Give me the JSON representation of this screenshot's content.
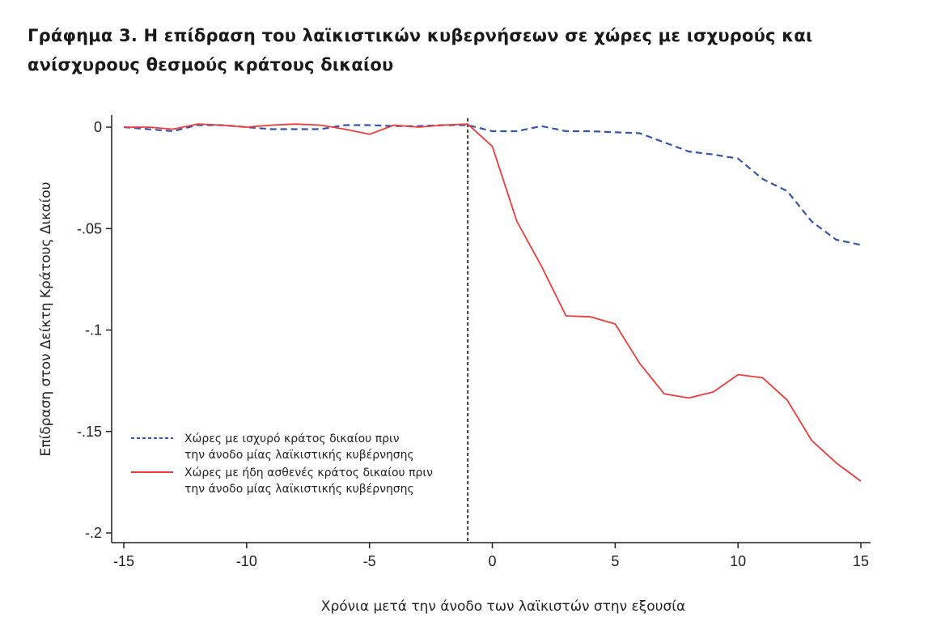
{
  "title": "Γράφημα 3. Η επίδραση του λαϊκιστικών κυβερνήσεων σε χώρες με ισχυρούς και ανίσχυρους θεσμούς κράτους δικαίου",
  "chart_data": {
    "type": "line",
    "xlabel": "Χρόνια μετά την άνοδο των λαϊκιστών στην εξουσία",
    "ylabel": "Επίδραση στον Δείκτη Κράτους Δικαίου",
    "xlim": [
      -15,
      15
    ],
    "ylim": [
      -0.2,
      0.005
    ],
    "xticks": [
      -15,
      -10,
      -5,
      0,
      5,
      10,
      15
    ],
    "xtick_labels": [
      "-15",
      "-10",
      "-5",
      "0",
      "5",
      "10",
      "15"
    ],
    "yticks": [
      0,
      -0.05,
      -0.1,
      -0.15,
      -0.2
    ],
    "ytick_labels": [
      "0",
      "-.05",
      "-.1",
      "-.15",
      "-.2"
    ],
    "vline_x": -1,
    "grid": false,
    "legend_position": "bottom-left",
    "series": [
      {
        "name": "Χώρες με ισχυρό κράτος δικαίου πριν την άνοδο μίας λαϊκιστικής κυβέρνησης",
        "legend_lines": [
          "Χώρες με ισχυρό κράτος δικαίου πριν",
          "την άνοδο μίας λαϊκιστικής κυβέρνησης"
        ],
        "color": "#3355aa",
        "style": "dashed",
        "x": [
          -15,
          -14,
          -13,
          -12,
          -11,
          -10,
          -9,
          -8,
          -7,
          -6,
          -5,
          -4,
          -3,
          -2,
          -1,
          0,
          1,
          2,
          3,
          4,
          5,
          6,
          7,
          8,
          9,
          10,
          11,
          12,
          13,
          14,
          15
        ],
        "y": [
          0,
          -0.001,
          -0.002,
          0.001,
          0.001,
          0,
          -0.001,
          -0.001,
          -0.001,
          0.001,
          0.001,
          0.0005,
          0.0005,
          0.001,
          0.001,
          -0.002,
          -0.002,
          0.0005,
          -0.002,
          -0.002,
          -0.0025,
          -0.003,
          -0.0075,
          -0.012,
          -0.0135,
          -0.0155,
          -0.0255,
          -0.0315,
          -0.0465,
          -0.0555,
          -0.058
        ]
      },
      {
        "name": "Χώρες με ήδη ασθενές κράτος δικαίου πριν την άνοδο μίας λαϊκιστικής κυβέρνησης",
        "legend_lines": [
          "Χώρες με ήδη ασθενές κράτος δικαίου πριν",
          "την άνοδο μίας λαϊκιστικής κυβέρνησης"
        ],
        "color": "#ee3b3b",
        "style": "solid",
        "x": [
          -15,
          -14,
          -13,
          -12,
          -11,
          -10,
          -9,
          -8,
          -7,
          -6,
          -5,
          -4,
          -3,
          -2,
          -1,
          0,
          1,
          2,
          3,
          4,
          5,
          6,
          7,
          8,
          9,
          10,
          11,
          12,
          13,
          14,
          15
        ],
        "y": [
          0,
          0,
          -0.001,
          0.0015,
          0.001,
          0,
          0.001,
          0.0015,
          0.001,
          -0.001,
          -0.0035,
          0.001,
          0,
          0.001,
          0.0015,
          -0.0095,
          -0.0465,
          -0.0685,
          -0.093,
          -0.0935,
          -0.097,
          -0.1165,
          -0.1315,
          -0.1335,
          -0.1305,
          -0.122,
          -0.1235,
          -0.1345,
          -0.1545,
          -0.1655,
          -0.1745
        ]
      }
    ]
  }
}
